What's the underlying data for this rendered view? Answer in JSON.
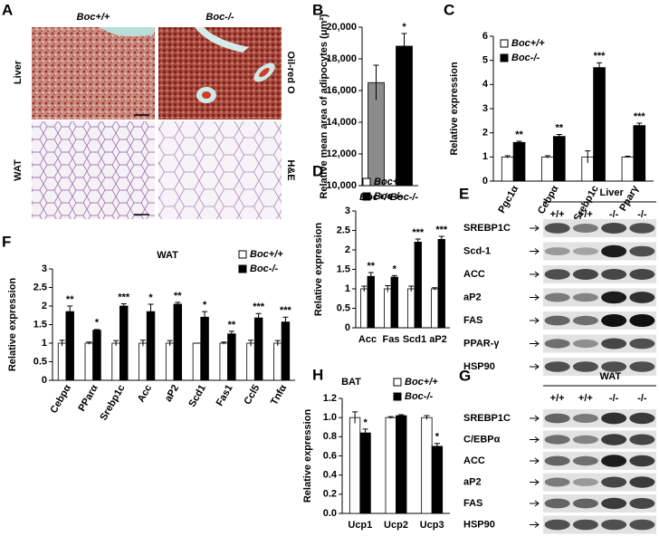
{
  "panel_labels": [
    "A",
    "B",
    "C",
    "D",
    "E",
    "F",
    "G",
    "H"
  ],
  "panel_a": {
    "columns": [
      "Boc+/+",
      "Boc-/-"
    ],
    "rows": [
      "Liver",
      "WAT"
    ],
    "stains": [
      "Oil-red O",
      "H&E"
    ]
  },
  "chart_data": [
    {
      "type": "bar",
      "y_label": "Relative mean area of adipocytes (μm²)",
      "categories": [
        "Boc+/+",
        "Boc-/-"
      ],
      "values": [
        16500,
        18800
      ],
      "errors": [
        1100,
        800
      ],
      "colors": [
        "#8c8c8c",
        "#000000"
      ],
      "annotations": [
        null,
        "*"
      ],
      "ylim": [
        10000,
        20000
      ],
      "yticks": [
        {
          "value": 10000,
          "label": "10,000"
        },
        {
          "value": 12000,
          "label": "12,000"
        },
        {
          "value": 14000,
          "label": "14,000"
        },
        {
          "value": 16000,
          "label": "16,000"
        },
        {
          "value": 18000,
          "label": "18,000"
        },
        {
          "value": 20000,
          "label": "20,000"
        }
      ]
    },
    {
      "type": "bar",
      "y_label": "Relative expression",
      "legend": "upper left",
      "categories": [
        "Pgc1α",
        "Cebpα",
        "Srebp1c",
        "Pparγ"
      ],
      "series": [
        {
          "name": "Boc+/+",
          "color": "#ffffff",
          "values": [
            1,
            1,
            1,
            1
          ],
          "errors": [
            0.05,
            0.05,
            0.25,
            0.03
          ]
        },
        {
          "name": "Boc-/-",
          "color": "#000000",
          "values": [
            1.6,
            1.85,
            4.7,
            2.3
          ],
          "errors": [
            0.05,
            0.08,
            0.2,
            0.1
          ],
          "annotations": [
            "**",
            "**",
            "***",
            "***"
          ]
        }
      ],
      "ylim": [
        0,
        6
      ],
      "yticks": [
        0,
        1,
        2,
        3,
        4,
        5,
        6
      ]
    },
    {
      "type": "bar",
      "y_label": "Relative expression",
      "legend": "upper left",
      "categories": [
        "Acc",
        "Fas",
        "Scd1",
        "aP2"
      ],
      "series": [
        {
          "name": "Boc+/+",
          "color": "#ffffff",
          "values": [
            1,
            1,
            1,
            1
          ],
          "errors": [
            0.07,
            0.08,
            0.07,
            0.03
          ]
        },
        {
          "name": "Boc-/-",
          "color": "#000000",
          "values": [
            1.32,
            1.3,
            2.2,
            2.27
          ],
          "errors": [
            0.1,
            0.04,
            0.08,
            0.08
          ],
          "annotations": [
            "**",
            "*",
            "***",
            "***"
          ]
        }
      ],
      "ylim": [
        0,
        3
      ],
      "yticks": [
        0,
        0.5,
        1,
        1.5,
        2,
        2.5,
        3
      ]
    },
    {
      "type": "bar",
      "title": "WAT",
      "y_label": "Relative expression",
      "legend": "upper right",
      "categories": [
        "Cebpα",
        "PParα",
        "Srebp1c",
        "Acc",
        "aP2",
        "Scd1",
        "Fas1",
        "Ccl5",
        "Tnfα"
      ],
      "series": [
        {
          "name": "Boc+/+",
          "color": "#ffffff",
          "values": [
            1,
            1,
            1,
            1,
            1,
            1,
            1,
            1,
            1
          ],
          "errors": [
            0.08,
            0.03,
            0.07,
            0.08,
            0.07,
            0,
            0.03,
            0.08,
            0.07
          ]
        },
        {
          "name": "Boc-/-",
          "color": "#000000",
          "values": [
            1.85,
            1.35,
            2,
            1.85,
            2.05,
            1.7,
            1.25,
            1.68,
            1.57
          ],
          "errors": [
            0.15,
            0.02,
            0.06,
            0.2,
            0.05,
            0.15,
            0.07,
            0.12,
            0.13
          ],
          "annotations": [
            "**",
            "*",
            "***",
            "*",
            "**",
            "*",
            "**",
            "***",
            "***"
          ]
        }
      ],
      "ylim": [
        0,
        3
      ],
      "yticks": [
        0,
        0.5,
        1,
        1.5,
        2,
        2.5,
        3
      ]
    },
    {
      "type": "bar",
      "title": "BAT",
      "y_label": "Relative expression",
      "legend": "upper right",
      "categories": [
        "Ucp1",
        "Ucp2",
        "Ucp3"
      ],
      "series": [
        {
          "name": "Boc+/+",
          "color": "#ffffff",
          "values": [
            1.0,
            1.0,
            1.0
          ],
          "errors": [
            0.06,
            0.01,
            0.02
          ]
        },
        {
          "name": "Boc-/-",
          "color": "#000000",
          "values": [
            0.84,
            1.02,
            0.7
          ],
          "errors": [
            0.04,
            0.01,
            0.03
          ],
          "annotations": [
            "*",
            null,
            "*"
          ]
        }
      ],
      "ylim": [
        0,
        1.2
      ],
      "yticks": [
        {
          "value": 0,
          "label": "0.0"
        },
        0.2,
        0.4,
        0.6,
        0.8,
        {
          "value": 1,
          "label": "1.0"
        },
        1.2
      ]
    }
  ],
  "blots": [
    {
      "title": "Liver",
      "lanes": [
        "+/+",
        "+/+",
        "-/-",
        "-/-"
      ],
      "proteins": [
        "SREBP1C",
        "Scd-1",
        "ACC",
        "aP2",
        "FAS",
        "PPAR-γ",
        "HSP90"
      ]
    },
    {
      "title": "WAT",
      "lanes": [
        "+/+",
        "+/+",
        "-/-",
        "-/-"
      ],
      "proteins": [
        "SREBP1C",
        "C/EBPα",
        "ACC",
        "aP2",
        "FAS",
        "HSP90"
      ]
    }
  ]
}
